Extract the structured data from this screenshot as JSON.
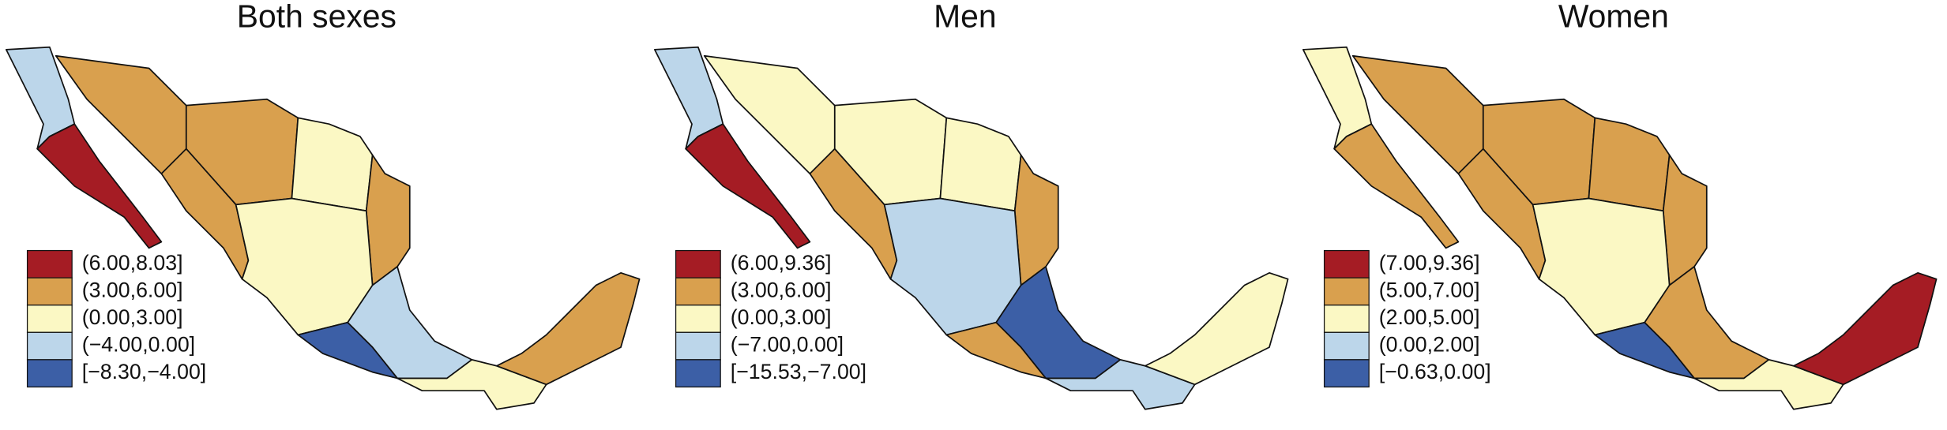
{
  "panels": [
    {
      "title": "Both sexes",
      "legend": [
        {
          "label": "(6.00,8.03]",
          "color": "#a51c24"
        },
        {
          "label": "(3.00,6.00]",
          "color": "#d9a04e"
        },
        {
          "label": "(0.00,3.00]",
          "color": "#fbf8c4"
        },
        {
          "label": "(−4.00,0.00]",
          "color": "#bcd6ea"
        },
        {
          "label": "[−8.30,−4.00]",
          "color": "#3c5fa6"
        }
      ]
    },
    {
      "title": "Men",
      "legend": [
        {
          "label": "(6.00,9.36]",
          "color": "#a51c24"
        },
        {
          "label": "(3.00,6.00]",
          "color": "#d9a04e"
        },
        {
          "label": "(0.00,3.00]",
          "color": "#fbf8c4"
        },
        {
          "label": "(−7.00,0.00]",
          "color": "#bcd6ea"
        },
        {
          "label": "[−15.53,−7.00]",
          "color": "#3c5fa6"
        }
      ]
    },
    {
      "title": "Women",
      "legend": [
        {
          "label": "(7.00,9.36]",
          "color": "#a51c24"
        },
        {
          "label": "(5.00,7.00]",
          "color": "#d9a04e"
        },
        {
          "label": "(2.00,5.00]",
          "color": "#fbf8c4"
        },
        {
          "label": "(0.00,2.00]",
          "color": "#bcd6ea"
        },
        {
          "label": "[−0.63,0.00]",
          "color": "#3c5fa6"
        }
      ]
    }
  ]
}
